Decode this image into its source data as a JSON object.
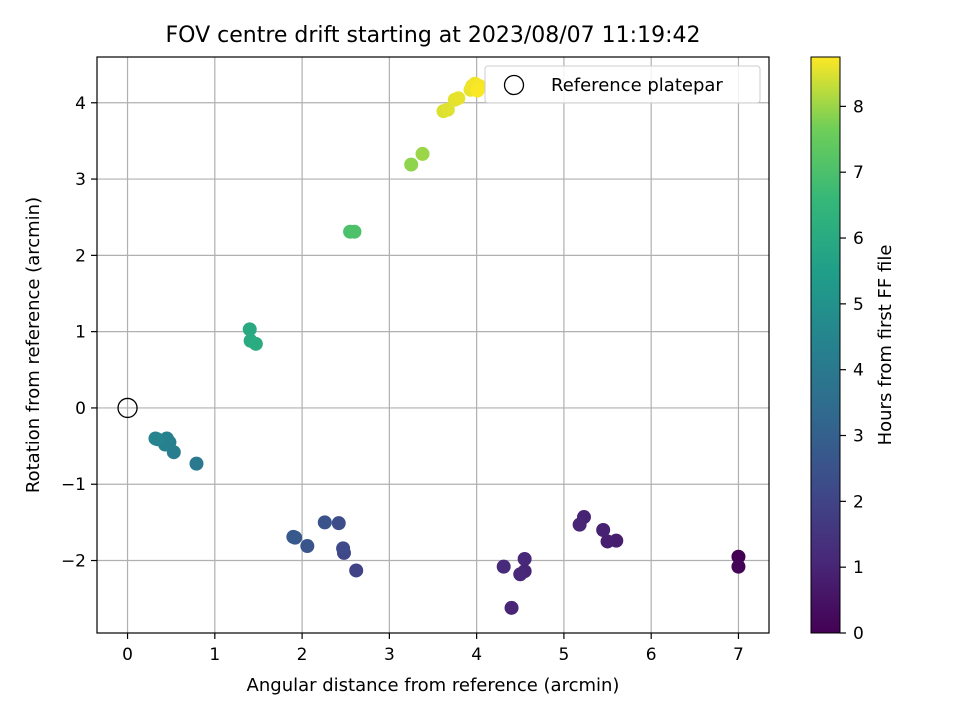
{
  "chart_data": {
    "type": "scatter",
    "title": "FOV centre drift starting at 2023/08/07 11:19:42",
    "xlabel": "Angular distance from reference (arcmin)",
    "ylabel": "Rotation from reference (arcmin)",
    "xlim": [
      -0.35,
      7.35
    ],
    "ylim": [
      -2.95,
      4.6
    ],
    "xticks": [
      0,
      1,
      2,
      3,
      4,
      5,
      6,
      7
    ],
    "yticks": [
      -2,
      -1,
      0,
      1,
      2,
      3,
      4
    ],
    "grid": true,
    "legend": {
      "position": "upper right",
      "entries": [
        "Reference platepar"
      ]
    },
    "reference_point": {
      "label": "Reference platepar",
      "x": 0,
      "y": 0
    },
    "colorbar": {
      "label": "Hours from first FF file",
      "min": 0,
      "max": 8.75,
      "ticks": [
        0,
        1,
        2,
        3,
        4,
        5,
        6,
        7,
        8
      ],
      "colormap": "viridis"
    },
    "points": [
      {
        "x": 7.0,
        "y": -1.95,
        "hours": 0.0
      },
      {
        "x": 7.0,
        "y": -2.08,
        "hours": 0.1
      },
      {
        "x": 5.6,
        "y": -1.74,
        "hours": 0.8
      },
      {
        "x": 5.5,
        "y": -1.75,
        "hours": 0.85
      },
      {
        "x": 5.45,
        "y": -1.6,
        "hours": 0.9
      },
      {
        "x": 5.23,
        "y": -1.43,
        "hours": 0.95
      },
      {
        "x": 5.18,
        "y": -1.53,
        "hours": 1.0
      },
      {
        "x": 4.55,
        "y": -1.98,
        "hours": 1.1
      },
      {
        "x": 4.55,
        "y": -2.14,
        "hours": 1.05
      },
      {
        "x": 4.5,
        "y": -2.18,
        "hours": 1.1
      },
      {
        "x": 4.4,
        "y": -2.62,
        "hours": 1.0
      },
      {
        "x": 4.31,
        "y": -2.08,
        "hours": 1.15
      },
      {
        "x": 2.62,
        "y": -2.13,
        "hours": 2.0
      },
      {
        "x": 2.48,
        "y": -1.9,
        "hours": 2.1
      },
      {
        "x": 2.47,
        "y": -1.84,
        "hours": 2.2
      },
      {
        "x": 2.42,
        "y": -1.51,
        "hours": 2.3
      },
      {
        "x": 2.26,
        "y": -1.5,
        "hours": 2.5
      },
      {
        "x": 2.06,
        "y": -1.81,
        "hours": 2.6
      },
      {
        "x": 1.92,
        "y": -1.7,
        "hours": 2.7
      },
      {
        "x": 1.9,
        "y": -1.69,
        "hours": 2.75
      },
      {
        "x": 0.79,
        "y": -0.73,
        "hours": 4.0
      },
      {
        "x": 0.53,
        "y": -0.58,
        "hours": 4.2
      },
      {
        "x": 0.48,
        "y": -0.45,
        "hours": 4.25
      },
      {
        "x": 0.45,
        "y": -0.4,
        "hours": 4.3
      },
      {
        "x": 0.43,
        "y": -0.48,
        "hours": 4.3
      },
      {
        "x": 0.34,
        "y": -0.41,
        "hours": 4.4
      },
      {
        "x": 0.32,
        "y": -0.4,
        "hours": 4.45
      },
      {
        "x": 1.4,
        "y": 1.03,
        "hours": 5.95
      },
      {
        "x": 1.41,
        "y": 0.88,
        "hours": 6.0
      },
      {
        "x": 1.47,
        "y": 0.84,
        "hours": 6.05
      },
      {
        "x": 2.55,
        "y": 2.31,
        "hours": 7.0
      },
      {
        "x": 2.6,
        "y": 2.31,
        "hours": 7.05
      },
      {
        "x": 3.25,
        "y": 3.19,
        "hours": 7.9
      },
      {
        "x": 3.38,
        "y": 3.33,
        "hours": 8.0
      },
      {
        "x": 3.62,
        "y": 3.89,
        "hours": 8.5
      },
      {
        "x": 3.67,
        "y": 3.91,
        "hours": 8.52
      },
      {
        "x": 3.75,
        "y": 4.04,
        "hours": 8.55
      },
      {
        "x": 3.79,
        "y": 4.06,
        "hours": 8.58
      },
      {
        "x": 3.93,
        "y": 4.17,
        "hours": 8.6
      },
      {
        "x": 3.95,
        "y": 4.22,
        "hours": 8.63
      },
      {
        "x": 3.98,
        "y": 4.25,
        "hours": 8.66
      },
      {
        "x": 4.03,
        "y": 4.22,
        "hours": 8.7
      },
      {
        "x": 4.01,
        "y": 4.16,
        "hours": 8.73
      }
    ]
  }
}
